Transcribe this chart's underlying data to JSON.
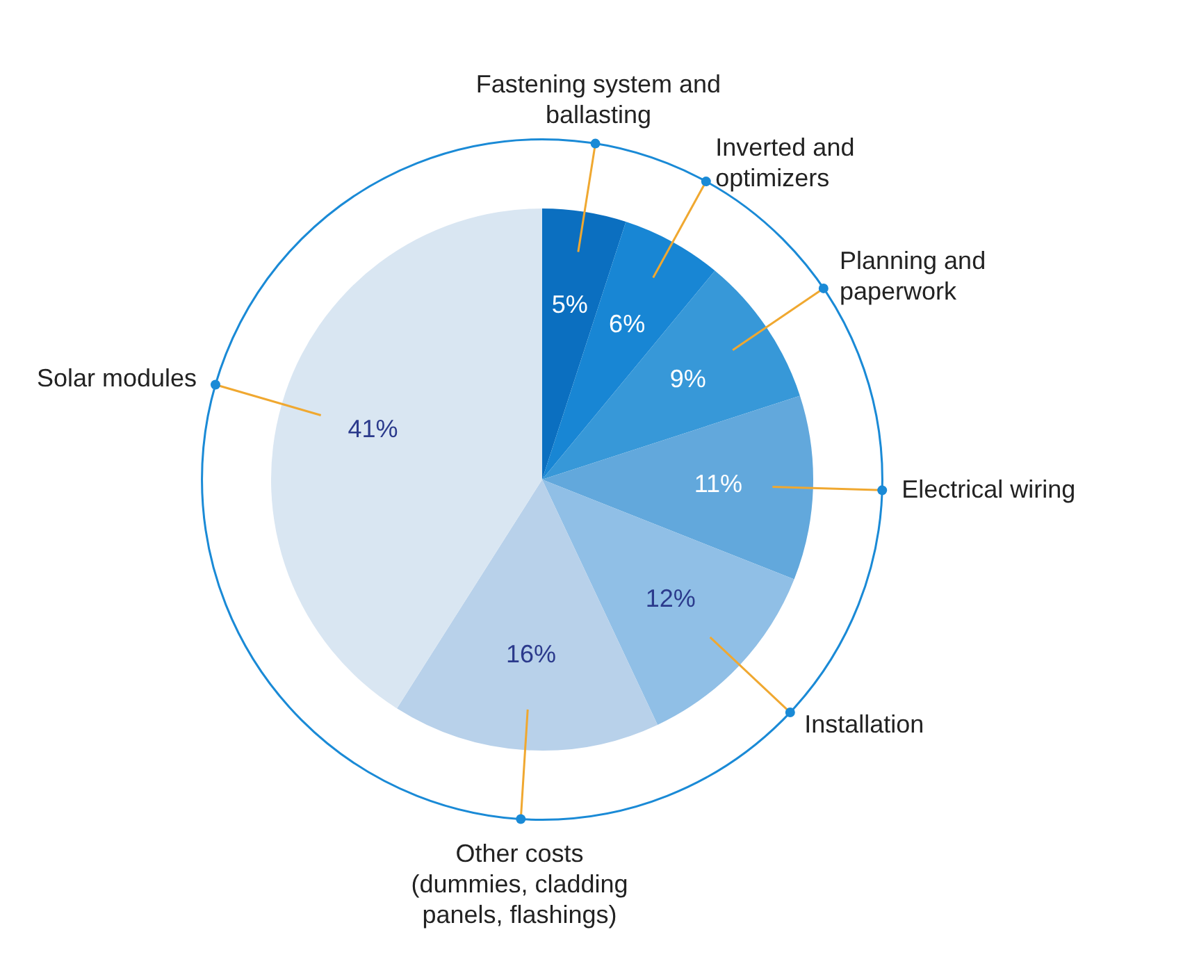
{
  "chart_data": {
    "type": "pie",
    "categories": [
      "Fastening system and ballasting",
      "Inverted and optimizers",
      "Planning and paperwork",
      "Electrical wiring",
      "Installation",
      "Other costs (dummies, cladding panels, flashings)",
      "Solar modules"
    ],
    "values": [
      5,
      6,
      9,
      11,
      12,
      16,
      41
    ],
    "colors": [
      "#0b6fc0",
      "#1886d4",
      "#3798d8",
      "#62a8dc",
      "#90bfe6",
      "#b8d1ea",
      "#d9e6f2"
    ],
    "value_labels": [
      "5%",
      "6%",
      "9%",
      "11%",
      "12%",
      "16%",
      "41%"
    ],
    "legend": false
  }
}
